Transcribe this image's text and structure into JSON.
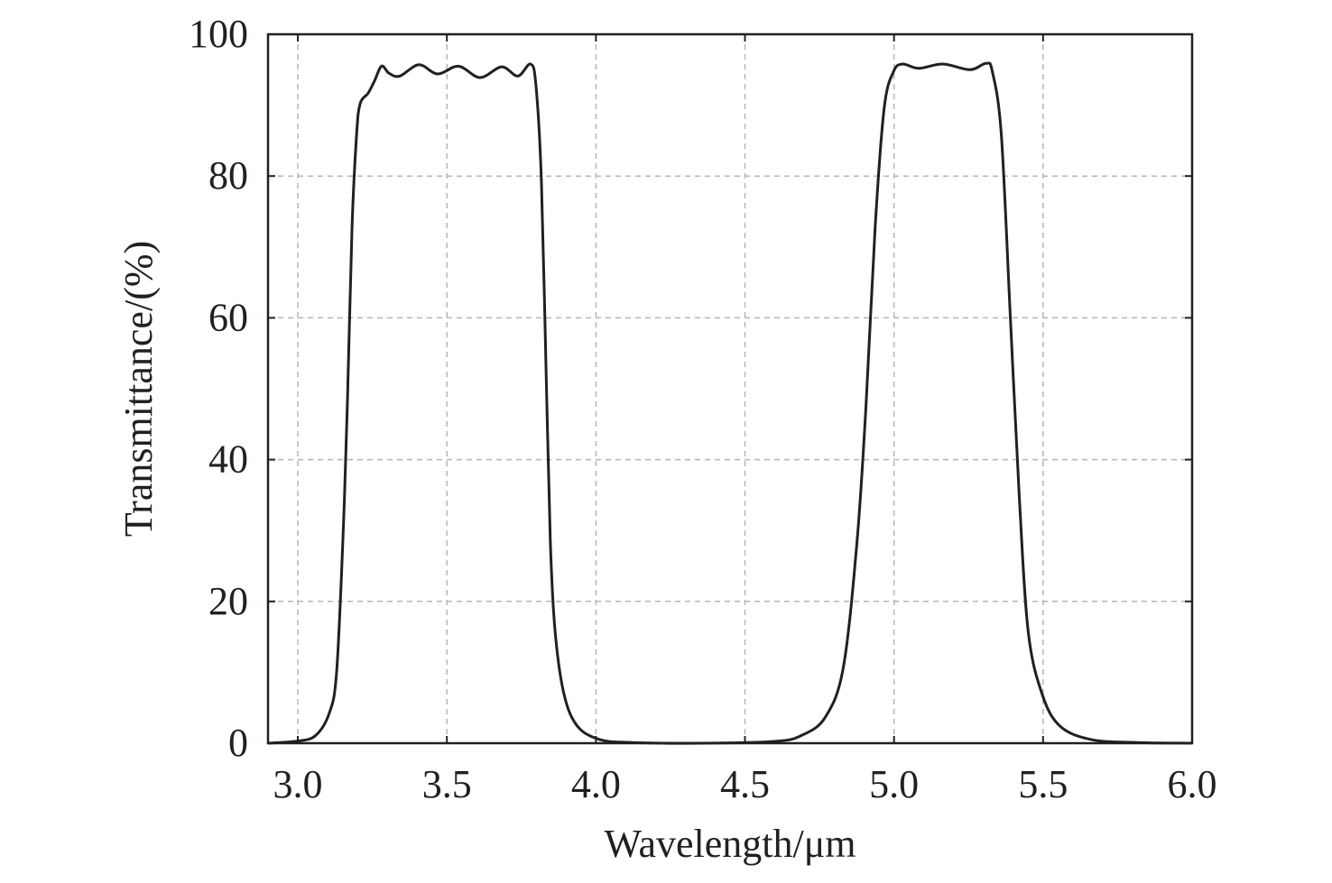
{
  "chart_data": {
    "type": "line",
    "title": "",
    "xlabel": "Wavelength/μm",
    "ylabel": "Transmittance/(%)",
    "xlim": [
      2.9,
      6.0
    ],
    "ylim": [
      0,
      100
    ],
    "xticks": [
      "3.0",
      "3.5",
      "4.0",
      "4.5",
      "5.0",
      "5.5",
      "6.0"
    ],
    "xtick_values": [
      3.0,
      3.5,
      4.0,
      4.5,
      5.0,
      5.5,
      6.0
    ],
    "yticks": [
      "0",
      "20",
      "40",
      "60",
      "80",
      "100"
    ],
    "ytick_values": [
      0,
      20,
      40,
      60,
      80,
      100
    ],
    "grid": true,
    "series": [
      {
        "name": "Transmittance",
        "color": "#231f20",
        "x": [
          2.9,
          3.0,
          3.06,
          3.106,
          3.13,
          3.151,
          3.166,
          3.182,
          3.197,
          3.209,
          3.236,
          3.257,
          3.281,
          3.306,
          3.342,
          3.406,
          3.469,
          3.539,
          3.611,
          3.684,
          3.738,
          3.781,
          3.799,
          3.817,
          3.832,
          3.847,
          3.863,
          3.893,
          3.938,
          4.014,
          4.12,
          4.36,
          4.6,
          4.69,
          4.77,
          4.83,
          4.876,
          4.906,
          4.937,
          4.967,
          4.998,
          5.028,
          5.083,
          5.164,
          5.255,
          5.309,
          5.33,
          5.36,
          5.39,
          5.42,
          5.45,
          5.497,
          5.557,
          5.663,
          5.815,
          6.0
        ],
        "y": [
          0,
          0.3,
          1.1,
          4.3,
          10,
          28.5,
          47.6,
          73,
          85.8,
          90.2,
          91.7,
          93.4,
          95.5,
          94.5,
          94.1,
          95.7,
          94.4,
          95.5,
          93.9,
          95.4,
          94.1,
          95.8,
          92.7,
          79.4,
          54,
          28.5,
          15.8,
          6.9,
          2.4,
          0.5,
          0.1,
          0,
          0.25,
          1.1,
          3.7,
          10.7,
          28.5,
          47.6,
          73,
          89.6,
          94.7,
          95.8,
          95.2,
          95.8,
          95,
          95.9,
          94.7,
          85.8,
          60.3,
          34.9,
          15.8,
          6.9,
          2.4,
          0.5,
          0.1,
          0
        ]
      }
    ]
  }
}
